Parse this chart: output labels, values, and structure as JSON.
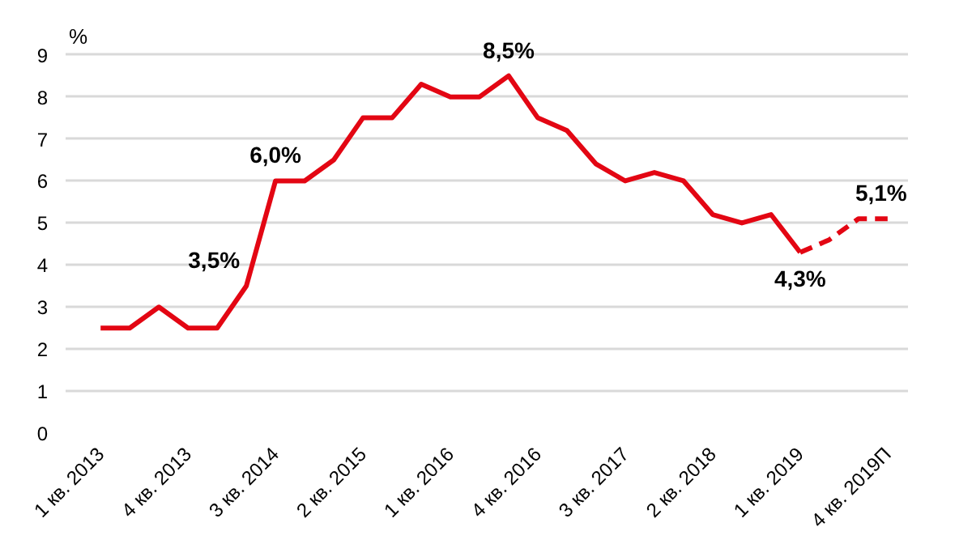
{
  "chart_data": {
    "type": "line",
    "ylabel": "%",
    "categories": [
      "1 кв. 2013",
      null,
      null,
      "4 кв. 2013",
      null,
      null,
      "3 кв. 2014",
      null,
      null,
      "2 кв. 2015",
      null,
      null,
      "1 кв. 2016",
      null,
      null,
      "4 кв. 2016",
      null,
      null,
      "3 кв. 2017",
      null,
      null,
      "2 кв. 2018",
      null,
      null,
      "1 кв. 2019",
      null,
      null,
      "4 кв. 2019П"
    ],
    "series": [
      {
        "color": "#e30613",
        "line_style": "solid",
        "values": [
          2.5,
          2.5,
          3.0,
          2.5,
          2.5,
          3.5,
          6.0,
          6.0,
          6.5,
          7.5,
          7.5,
          8.3,
          8.0,
          8.0,
          8.5,
          7.5,
          7.2,
          6.4,
          6.0,
          6.2,
          6.0,
          5.2,
          5.0,
          5.2,
          4.3,
          null,
          null,
          null
        ],
        "value_labels": [
          null,
          null,
          null,
          null,
          null,
          "3,5%",
          "6,0%",
          null,
          null,
          null,
          null,
          null,
          null,
          null,
          "8,5%",
          null,
          null,
          null,
          null,
          null,
          null,
          null,
          null,
          null,
          "4,3%",
          null,
          null,
          null
        ]
      },
      {
        "color": "#e30613",
        "line_style": "dashed",
        "values": [
          null,
          null,
          null,
          null,
          null,
          null,
          null,
          null,
          null,
          null,
          null,
          null,
          null,
          null,
          null,
          null,
          null,
          null,
          null,
          null,
          null,
          null,
          null,
          null,
          4.3,
          4.6,
          5.1,
          5.1
        ],
        "value_labels": [
          null,
          null,
          null,
          null,
          null,
          null,
          null,
          null,
          null,
          null,
          null,
          null,
          null,
          null,
          null,
          null,
          null,
          null,
          null,
          null,
          null,
          null,
          null,
          null,
          null,
          null,
          null,
          "5,1%"
        ]
      }
    ],
    "ylim": [
      0,
      9
    ],
    "yticks": [
      0,
      1,
      2,
      3,
      4,
      5,
      6,
      7,
      8,
      9
    ],
    "grid": "y",
    "marker": "none"
  }
}
